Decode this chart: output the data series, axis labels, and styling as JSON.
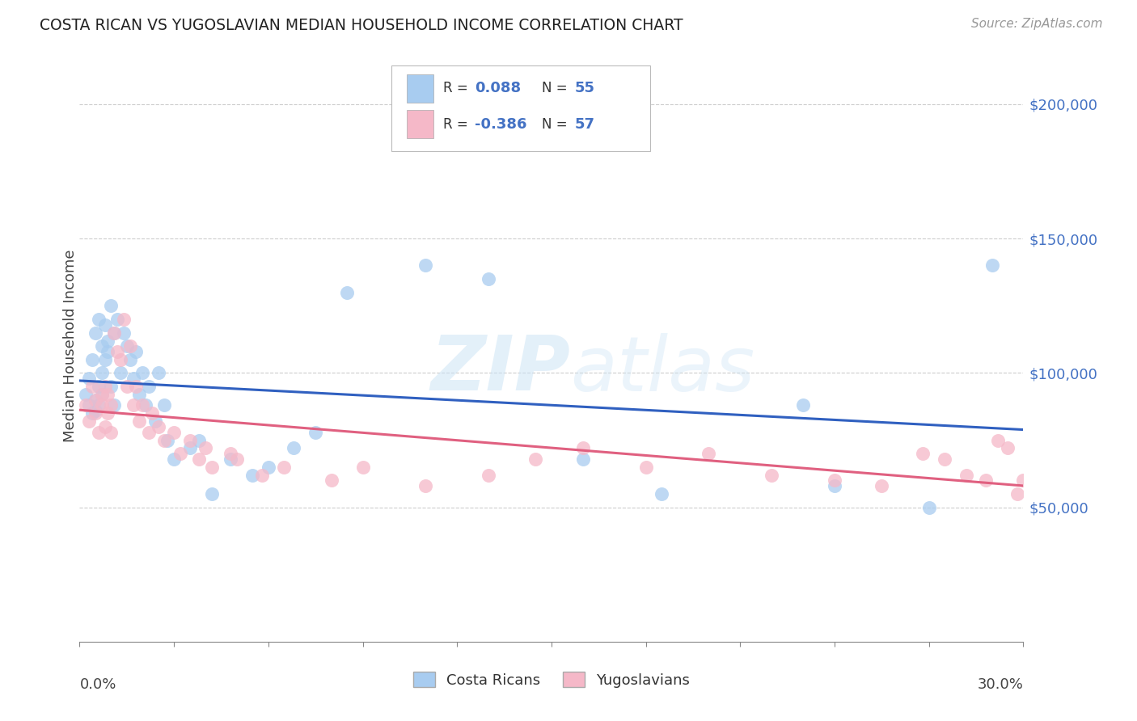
{
  "title": "COSTA RICAN VS YUGOSLAVIAN MEDIAN HOUSEHOLD INCOME CORRELATION CHART",
  "source": "Source: ZipAtlas.com",
  "ylabel": "Median Household Income",
  "watermark": "ZIPatlas",
  "legend_label1": "Costa Ricans",
  "legend_label2": "Yugoslavians",
  "r1_text": "0.088",
  "n1_text": "55",
  "r2_text": "-0.386",
  "n2_text": "57",
  "color_blue": "#A8CCF0",
  "color_pink": "#F5B8C8",
  "color_blue_line": "#3060C0",
  "color_pink_line": "#E06080",
  "color_blue_text": "#4472C4",
  "color_dark": "#444444",
  "color_grid": "#CCCCCC",
  "ytick_labels": [
    "$50,000",
    "$100,000",
    "$150,000",
    "$200,000"
  ],
  "ytick_values": [
    50000,
    100000,
    150000,
    200000
  ],
  "ymin": 0,
  "ymax": 220000,
  "xmin": 0.0,
  "xmax": 0.3,
  "blue_scatter_x": [
    0.002,
    0.003,
    0.003,
    0.004,
    0.004,
    0.005,
    0.005,
    0.005,
    0.006,
    0.006,
    0.006,
    0.007,
    0.007,
    0.007,
    0.008,
    0.008,
    0.009,
    0.009,
    0.01,
    0.01,
    0.011,
    0.011,
    0.012,
    0.013,
    0.014,
    0.015,
    0.016,
    0.017,
    0.018,
    0.019,
    0.02,
    0.021,
    0.022,
    0.024,
    0.025,
    0.027,
    0.028,
    0.03,
    0.035,
    0.038,
    0.042,
    0.048,
    0.055,
    0.06,
    0.068,
    0.075,
    0.085,
    0.11,
    0.13,
    0.16,
    0.185,
    0.23,
    0.24,
    0.27,
    0.29
  ],
  "blue_scatter_y": [
    92000,
    88000,
    98000,
    85000,
    105000,
    90000,
    86000,
    115000,
    95000,
    88000,
    120000,
    110000,
    100000,
    92000,
    105000,
    118000,
    112000,
    108000,
    125000,
    95000,
    115000,
    88000,
    120000,
    100000,
    115000,
    110000,
    105000,
    98000,
    108000,
    92000,
    100000,
    88000,
    95000,
    82000,
    100000,
    88000,
    75000,
    68000,
    72000,
    75000,
    55000,
    68000,
    62000,
    65000,
    72000,
    78000,
    130000,
    140000,
    135000,
    68000,
    55000,
    88000,
    58000,
    50000,
    140000
  ],
  "pink_scatter_x": [
    0.002,
    0.003,
    0.004,
    0.005,
    0.005,
    0.006,
    0.007,
    0.007,
    0.008,
    0.008,
    0.009,
    0.009,
    0.01,
    0.01,
    0.011,
    0.012,
    0.013,
    0.014,
    0.015,
    0.016,
    0.017,
    0.018,
    0.019,
    0.02,
    0.022,
    0.023,
    0.025,
    0.027,
    0.03,
    0.032,
    0.035,
    0.038,
    0.04,
    0.042,
    0.048,
    0.05,
    0.058,
    0.065,
    0.08,
    0.09,
    0.11,
    0.13,
    0.145,
    0.16,
    0.18,
    0.2,
    0.22,
    0.24,
    0.255,
    0.268,
    0.275,
    0.282,
    0.288,
    0.292,
    0.295,
    0.298,
    0.3
  ],
  "pink_scatter_y": [
    88000,
    82000,
    95000,
    90000,
    85000,
    78000,
    92000,
    88000,
    95000,
    80000,
    85000,
    92000,
    78000,
    88000,
    115000,
    108000,
    105000,
    120000,
    95000,
    110000,
    88000,
    95000,
    82000,
    88000,
    78000,
    85000,
    80000,
    75000,
    78000,
    70000,
    75000,
    68000,
    72000,
    65000,
    70000,
    68000,
    62000,
    65000,
    60000,
    65000,
    58000,
    62000,
    68000,
    72000,
    65000,
    70000,
    62000,
    60000,
    58000,
    70000,
    68000,
    62000,
    60000,
    75000,
    72000,
    55000,
    60000
  ]
}
